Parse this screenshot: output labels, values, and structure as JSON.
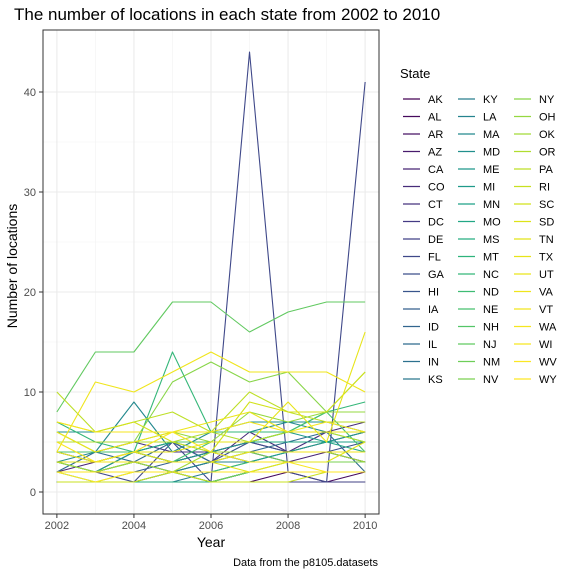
{
  "chart_data": {
    "type": "line",
    "title": "The number of locations in each state from 2002 to 2010",
    "xlabel": "Year",
    "ylabel": "Number of locations",
    "caption": "Data from the p8105.datasets",
    "xlim": [
      2002,
      2010
    ],
    "ylim": [
      0,
      44
    ],
    "x_ticks": [
      2002,
      2004,
      2006,
      2008,
      2010
    ],
    "y_ticks": [
      0,
      10,
      20,
      30,
      40
    ],
    "grid": true,
    "legend_title": "State",
    "legend_position": "right",
    "x": [
      2002,
      2003,
      2004,
      2005,
      2006,
      2007,
      2008,
      2009,
      2010
    ],
    "series": [
      {
        "name": "AK",
        "color": "#440154",
        "values": [
          1,
          1,
          1,
          1,
          1,
          1,
          1,
          1,
          1
        ]
      },
      {
        "name": "AL",
        "color": "#460A5D",
        "values": [
          1,
          1,
          1,
          2,
          1,
          1,
          2,
          1,
          2
        ]
      },
      {
        "name": "AR",
        "color": "#471365",
        "values": [
          1,
          1,
          1,
          1,
          1,
          2,
          2,
          2,
          2
        ]
      },
      {
        "name": "AZ",
        "color": "#481B6D",
        "values": [
          2,
          2,
          4,
          3,
          4,
          5,
          4,
          5,
          6
        ]
      },
      {
        "name": "CA",
        "color": "#482475",
        "values": [
          2,
          3,
          3,
          3,
          4,
          4,
          3,
          4,
          3
        ]
      },
      {
        "name": "CO",
        "color": "#472C7A",
        "values": [
          4,
          3,
          4,
          5,
          3,
          6,
          4,
          6,
          7
        ]
      },
      {
        "name": "CT",
        "color": "#46337E",
        "values": [
          4,
          4,
          5,
          4,
          4,
          5,
          5,
          5,
          5
        ]
      },
      {
        "name": "DC",
        "color": "#443B84",
        "values": [
          1,
          1,
          1,
          1,
          1,
          1,
          1,
          1,
          1
        ]
      },
      {
        "name": "DE",
        "color": "#424186",
        "values": [
          1,
          1,
          1,
          1,
          1,
          1,
          1,
          1,
          1
        ]
      },
      {
        "name": "FL",
        "color": "#3F4889",
        "values": [
          3,
          2,
          1,
          5,
          1,
          44,
          2,
          1,
          41
        ]
      },
      {
        "name": "GA",
        "color": "#3C4F8A",
        "values": [
          2,
          2,
          3,
          2,
          3,
          5,
          4,
          4,
          5
        ]
      },
      {
        "name": "HI",
        "color": "#39558C",
        "values": [
          1,
          1,
          1,
          1,
          1,
          2,
          2,
          2,
          2
        ]
      },
      {
        "name": "IA",
        "color": "#355F8D",
        "values": [
          2,
          2,
          2,
          3,
          4,
          3,
          4,
          4,
          3
        ]
      },
      {
        "name": "ID",
        "color": "#32658E",
        "values": [
          1,
          1,
          1,
          1,
          1,
          2,
          2,
          2,
          2
        ]
      },
      {
        "name": "IL",
        "color": "#2F6B8E",
        "values": [
          2,
          4,
          3,
          5,
          3,
          4,
          5,
          6,
          2
        ]
      },
      {
        "name": "IN",
        "color": "#2C718E",
        "values": [
          3,
          3,
          4,
          3,
          3,
          3,
          3,
          3,
          3
        ]
      },
      {
        "name": "KS",
        "color": "#2A788E",
        "values": [
          2,
          2,
          2,
          2,
          3,
          3,
          3,
          3,
          3
        ]
      },
      {
        "name": "KY",
        "color": "#277E8E",
        "values": [
          1,
          1,
          1,
          1,
          2,
          3,
          3,
          3,
          3
        ]
      },
      {
        "name": "LA",
        "color": "#25838E",
        "values": [
          3,
          3,
          3,
          2,
          3,
          3,
          3,
          3,
          3
        ]
      },
      {
        "name": "MA",
        "color": "#23898E",
        "values": [
          3,
          4,
          9,
          4,
          6,
          6,
          7,
          6,
          6
        ]
      },
      {
        "name": "MD",
        "color": "#218F8D",
        "values": [
          6,
          6,
          6,
          6,
          6,
          7,
          7,
          7,
          6
        ]
      },
      {
        "name": "ME",
        "color": "#1F968B",
        "values": [
          1,
          1,
          1,
          1,
          1,
          2,
          2,
          2,
          2
        ]
      },
      {
        "name": "MI",
        "color": "#1F9A8A",
        "values": [
          3,
          2,
          3,
          3,
          4,
          5,
          6,
          5,
          6
        ]
      },
      {
        "name": "MN",
        "color": "#1FA088",
        "values": [
          2,
          2,
          4,
          5,
          4,
          3,
          4,
          5,
          5
        ]
      },
      {
        "name": "MO",
        "color": "#22A785",
        "values": [
          4,
          3,
          4,
          5,
          5,
          5,
          5,
          5,
          4
        ]
      },
      {
        "name": "MS",
        "color": "#26AD81",
        "values": [
          1,
          1,
          1,
          1,
          1,
          2,
          2,
          2,
          2
        ]
      },
      {
        "name": "MT",
        "color": "#2EB37C",
        "values": [
          2,
          1,
          1,
          2,
          1,
          2,
          2,
          2,
          2
        ]
      },
      {
        "name": "NC",
        "color": "#35B779",
        "values": [
          7,
          5,
          4,
          14,
          6,
          6,
          6,
          8,
          9
        ]
      },
      {
        "name": "ND",
        "color": "#3EBC73",
        "values": [
          2,
          2,
          2,
          2,
          2,
          3,
          3,
          3,
          3
        ]
      },
      {
        "name": "NE",
        "color": "#48C16E",
        "values": [
          4,
          4,
          4,
          3,
          5,
          5,
          6,
          8,
          4
        ]
      },
      {
        "name": "NH",
        "color": "#54C568",
        "values": [
          5,
          5,
          5,
          5,
          5,
          5,
          6,
          6,
          5
        ]
      },
      {
        "name": "NJ",
        "color": "#61C960",
        "values": [
          8,
          14,
          14,
          19,
          19,
          16,
          18,
          19,
          19
        ]
      },
      {
        "name": "NM",
        "color": "#6ECE58",
        "values": [
          3,
          2,
          3,
          3,
          3,
          4,
          3,
          3,
          3
        ]
      },
      {
        "name": "NV",
        "color": "#7AD151",
        "values": [
          1,
          1,
          2,
          2,
          1,
          2,
          3,
          3,
          3
        ]
      },
      {
        "name": "NY",
        "color": "#88D548",
        "values": [
          5,
          5,
          5,
          11,
          13,
          11,
          12,
          8,
          12
        ]
      },
      {
        "name": "OH",
        "color": "#95D840",
        "values": [
          6,
          4,
          5,
          6,
          5,
          8,
          7,
          8,
          8
        ]
      },
      {
        "name": "OK",
        "color": "#A2DA37",
        "values": [
          3,
          2,
          3,
          2,
          4,
          4,
          4,
          4,
          3
        ]
      },
      {
        "name": "OR",
        "color": "#B0DD2F",
        "values": [
          5,
          5,
          5,
          5,
          6,
          5,
          6,
          6,
          5
        ]
      },
      {
        "name": "PA",
        "color": "#BDDF26",
        "values": [
          10,
          6,
          7,
          8,
          6,
          10,
          8,
          7,
          7
        ]
      },
      {
        "name": "RI",
        "color": "#C8E020",
        "values": [
          1,
          1,
          1,
          2,
          1,
          1,
          1,
          2,
          2
        ]
      },
      {
        "name": "SC",
        "color": "#D2E21B",
        "values": [
          7,
          6,
          7,
          5,
          4,
          9,
          8,
          8,
          12
        ]
      },
      {
        "name": "SD",
        "color": "#DDE318",
        "values": [
          2,
          2,
          2,
          2,
          2,
          2,
          2,
          2,
          2
        ]
      },
      {
        "name": "TN",
        "color": "#E2E418",
        "values": [
          3,
          3,
          4,
          3,
          3,
          2,
          3,
          3,
          5
        ]
      },
      {
        "name": "TX",
        "color": "#E7E419",
        "values": [
          3,
          3,
          4,
          4,
          5,
          5,
          9,
          5,
          16
        ]
      },
      {
        "name": "UT",
        "color": "#EBE51A",
        "values": [
          6,
          4,
          5,
          6,
          7,
          8,
          6,
          6,
          6
        ]
      },
      {
        "name": "VA",
        "color": "#EFE51C",
        "values": [
          4,
          11,
          10,
          12,
          14,
          12,
          12,
          12,
          10
        ]
      },
      {
        "name": "VT",
        "color": "#F2E51D",
        "values": [
          4,
          3,
          3,
          3,
          3,
          4,
          4,
          4,
          4
        ]
      },
      {
        "name": "WA",
        "color": "#F5E61F",
        "values": [
          7,
          6,
          6,
          6,
          6,
          7,
          6,
          7,
          6
        ]
      },
      {
        "name": "WI",
        "color": "#F8E621",
        "values": [
          5,
          3,
          4,
          6,
          4,
          3,
          3,
          2,
          2
        ]
      },
      {
        "name": "WV",
        "color": "#FBE723",
        "values": [
          2,
          2,
          2,
          2,
          2,
          2,
          2,
          2,
          2
        ]
      },
      {
        "name": "WY",
        "color": "#FDE725",
        "values": [
          2,
          1,
          2,
          2,
          2,
          2,
          2,
          2,
          2
        ]
      }
    ]
  }
}
